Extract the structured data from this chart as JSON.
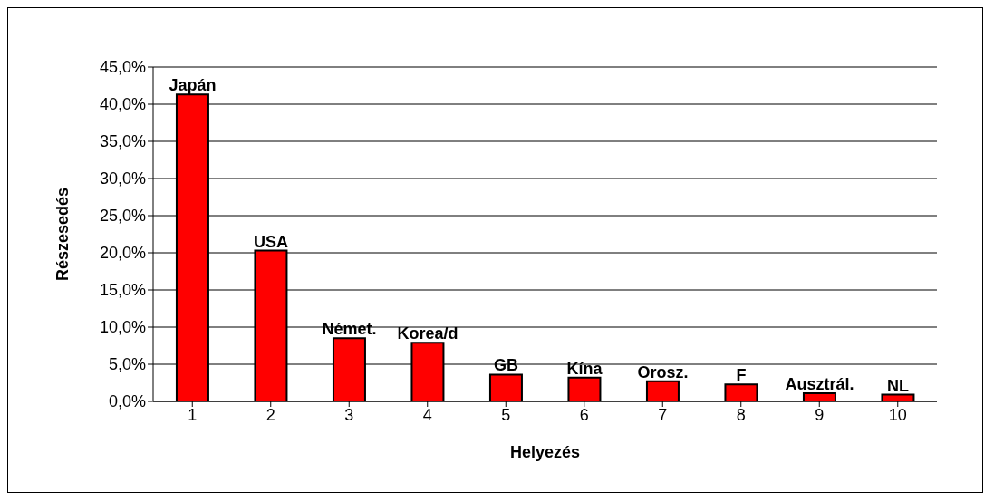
{
  "chart_data": {
    "type": "bar",
    "xlabel": "Helyezés",
    "ylabel": "Részesedés",
    "categories": [
      "1",
      "2",
      "3",
      "4",
      "5",
      "6",
      "7",
      "8",
      "9",
      "10"
    ],
    "values": [
      41.3,
      20.3,
      8.5,
      7.9,
      3.6,
      3.2,
      2.7,
      2.3,
      1.1,
      0.9
    ],
    "value_labels": [
      "Japán",
      "USA",
      "Német.",
      "Korea/d",
      "GB",
      "Kína",
      "Orosz.",
      "F",
      "Ausztrál.",
      "NL"
    ],
    "color": "#ff0000",
    "ylim": [
      0,
      45
    ],
    "yticks": [
      {
        "value": 0,
        "label": "0,0%"
      },
      {
        "value": 5,
        "label": "5,0%"
      },
      {
        "value": 10,
        "label": "10,0%"
      },
      {
        "value": 15,
        "label": "15,0%"
      },
      {
        "value": 20,
        "label": "20,0%"
      },
      {
        "value": 25,
        "label": "25,0%"
      },
      {
        "value": 30,
        "label": "30,0%"
      },
      {
        "value": 35,
        "label": "35,0%"
      },
      {
        "value": 40,
        "label": "40,0%"
      },
      {
        "value": 45,
        "label": "45,0%"
      }
    ],
    "grid": "y",
    "legend": false
  }
}
